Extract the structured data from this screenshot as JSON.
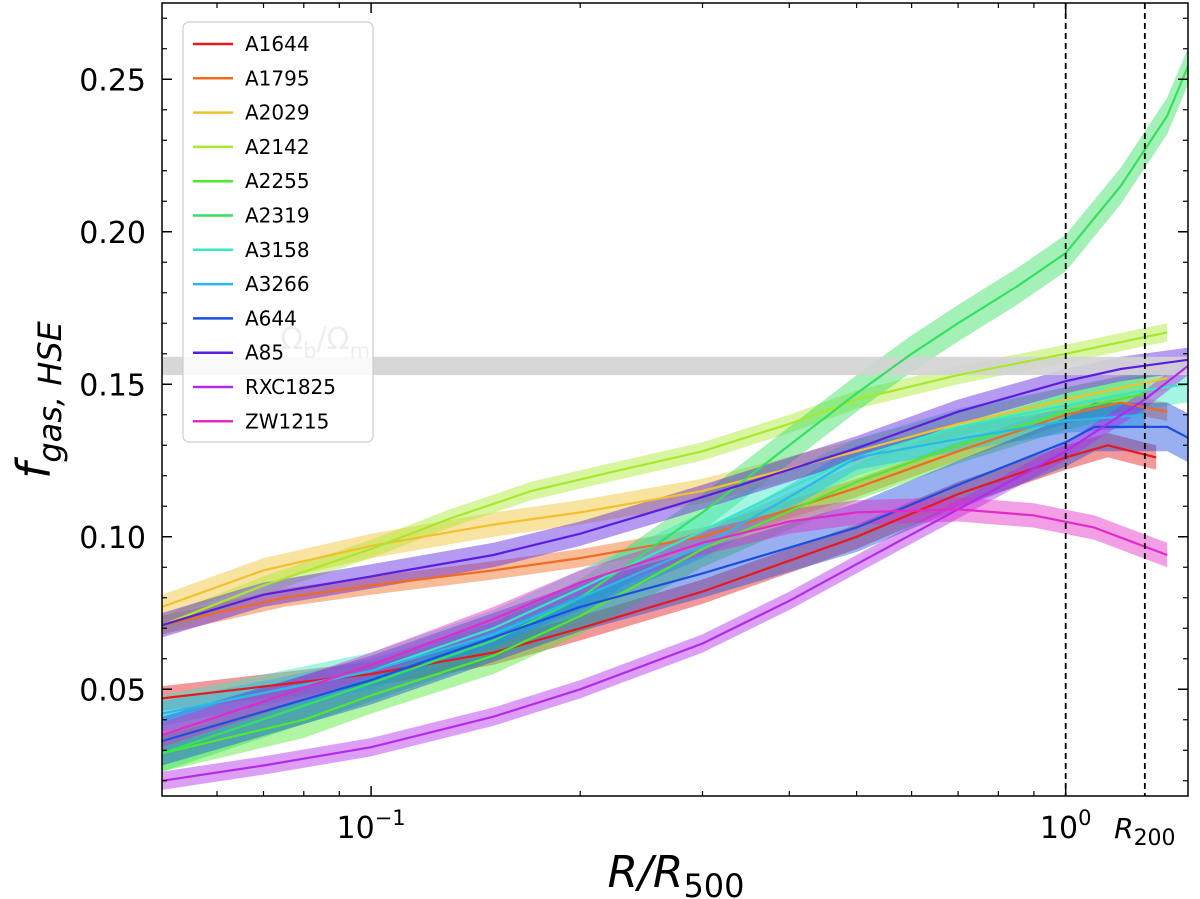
{
  "chart_data": {
    "type": "line",
    "xlabel": "R/R",
    "xlabel_sub": "500",
    "ylabel": "f",
    "ylabel_sub": "gas, HSE",
    "x_scale": "log",
    "xlim": [
      0.05,
      1.5
    ],
    "ylim": [
      0.015,
      0.275
    ],
    "x_ticks": [
      {
        "value": 0.1,
        "base": "10",
        "exp": "−1"
      },
      {
        "value": 1.0,
        "base": "10",
        "exp": "0"
      }
    ],
    "y_ticks": [
      {
        "value": 0.05,
        "label": "0.05"
      },
      {
        "value": 0.1,
        "label": "0.10"
      },
      {
        "value": 0.15,
        "label": "0.15"
      },
      {
        "value": 0.2,
        "label": "0.20"
      },
      {
        "value": 0.25,
        "label": "0.25"
      }
    ],
    "grid": false,
    "legend_position": "upper-left",
    "baryon_band": {
      "label_main": "Ω",
      "label_sub1": "b",
      "label_slash": "/Ω",
      "label_sub2": "m",
      "y_low": 0.153,
      "y_high": 0.159,
      "color": "#d3d3d3"
    },
    "vlines": [
      {
        "x": 1.0,
        "label": ""
      },
      {
        "x": 1.3,
        "label": "R",
        "label_sub": "200"
      }
    ],
    "series": [
      {
        "name": "A1644",
        "color": "#e41a1c",
        "err": 0.004,
        "x": [
          0.05,
          0.1,
          0.15,
          0.2,
          0.3,
          0.5,
          0.7,
          1.0,
          1.15,
          1.35
        ],
        "y": [
          0.047,
          0.055,
          0.062,
          0.07,
          0.082,
          0.1,
          0.114,
          0.126,
          0.13,
          0.126
        ]
      },
      {
        "name": "A1795",
        "color": "#f06b1d",
        "err": 0.003,
        "x": [
          0.05,
          0.075,
          0.1,
          0.15,
          0.2,
          0.3,
          0.5,
          0.7,
          1.0,
          1.2,
          1.4
        ],
        "y": [
          0.071,
          0.08,
          0.084,
          0.089,
          0.093,
          0.1,
          0.116,
          0.128,
          0.14,
          0.144,
          0.141
        ]
      },
      {
        "name": "A2029",
        "color": "#f2c02f",
        "err": 0.004,
        "x": [
          0.05,
          0.07,
          0.1,
          0.15,
          0.2,
          0.3,
          0.5,
          0.7,
          1.0,
          1.4
        ],
        "y": [
          0.077,
          0.089,
          0.097,
          0.104,
          0.108,
          0.115,
          0.128,
          0.137,
          0.145,
          0.152
        ]
      },
      {
        "name": "A2142",
        "color": "#a8e82c",
        "err": 0.003,
        "x": [
          0.05,
          0.07,
          0.1,
          0.13,
          0.17,
          0.22,
          0.3,
          0.4,
          0.5,
          0.7,
          1.0,
          1.4
        ],
        "y": [
          0.071,
          0.084,
          0.096,
          0.106,
          0.115,
          0.121,
          0.128,
          0.137,
          0.145,
          0.153,
          0.16,
          0.167
        ]
      },
      {
        "name": "A2255",
        "color": "#4fe82f",
        "err": 0.006,
        "x": [
          0.05,
          0.08,
          0.1,
          0.15,
          0.2,
          0.3,
          0.5,
          0.7,
          1.0,
          1.3
        ],
        "y": [
          0.029,
          0.04,
          0.048,
          0.061,
          0.074,
          0.096,
          0.118,
          0.13,
          0.141,
          0.147
        ]
      },
      {
        "name": "A2319",
        "color": "#36e060",
        "err": 0.006,
        "x": [
          0.05,
          0.1,
          0.15,
          0.2,
          0.3,
          0.4,
          0.5,
          0.6,
          0.7,
          0.85,
          1.0,
          1.2,
          1.4,
          1.55
        ],
        "y": [
          0.029,
          0.052,
          0.066,
          0.08,
          0.108,
          0.13,
          0.147,
          0.16,
          0.17,
          0.182,
          0.193,
          0.215,
          0.238,
          0.262
        ]
      },
      {
        "name": "A3158",
        "color": "#36e8c4",
        "err": 0.006,
        "x": [
          0.05,
          0.1,
          0.15,
          0.2,
          0.3,
          0.4,
          0.5,
          0.7,
          1.0,
          1.3,
          1.6
        ],
        "y": [
          0.042,
          0.056,
          0.07,
          0.083,
          0.102,
          0.116,
          0.126,
          0.136,
          0.143,
          0.148,
          0.151
        ]
      },
      {
        "name": "A3266",
        "color": "#2ab8e8",
        "err": 0.004,
        "x": [
          0.05,
          0.1,
          0.15,
          0.2,
          0.3,
          0.4,
          0.5,
          0.7,
          1.0,
          1.3
        ],
        "y": [
          0.042,
          0.056,
          0.068,
          0.08,
          0.097,
          0.113,
          0.126,
          0.132,
          0.138,
          0.14
        ]
      },
      {
        "name": "A644",
        "color": "#1a4fe0",
        "err": 0.008,
        "x": [
          0.05,
          0.1,
          0.15,
          0.2,
          0.3,
          0.5,
          0.7,
          1.0,
          1.1,
          1.4,
          1.7
        ],
        "y": [
          0.033,
          0.053,
          0.067,
          0.077,
          0.088,
          0.103,
          0.117,
          0.131,
          0.136,
          0.136,
          0.126
        ]
      },
      {
        "name": "A85",
        "color": "#5a1ee0",
        "err": 0.004,
        "x": [
          0.05,
          0.07,
          0.1,
          0.15,
          0.2,
          0.3,
          0.5,
          0.7,
          1.0,
          1.2,
          1.5,
          1.6
        ],
        "y": [
          0.071,
          0.081,
          0.087,
          0.094,
          0.101,
          0.113,
          0.129,
          0.141,
          0.151,
          0.155,
          0.158,
          0.156
        ]
      },
      {
        "name": "RXC1825",
        "color": "#b42ae8",
        "err": 0.003,
        "x": [
          0.05,
          0.07,
          0.1,
          0.15,
          0.2,
          0.3,
          0.4,
          0.5,
          0.7,
          1.0,
          1.3,
          1.5
        ],
        "y": [
          0.02,
          0.025,
          0.031,
          0.041,
          0.05,
          0.065,
          0.079,
          0.091,
          0.109,
          0.128,
          0.145,
          0.156
        ]
      },
      {
        "name": "ZW1215",
        "color": "#e32ac8",
        "err": 0.004,
        "x": [
          0.05,
          0.07,
          0.1,
          0.15,
          0.2,
          0.3,
          0.4,
          0.5,
          0.7,
          0.9,
          1.1,
          1.4
        ],
        "y": [
          0.035,
          0.046,
          0.058,
          0.073,
          0.085,
          0.098,
          0.105,
          0.108,
          0.109,
          0.107,
          0.103,
          0.094
        ]
      }
    ]
  }
}
